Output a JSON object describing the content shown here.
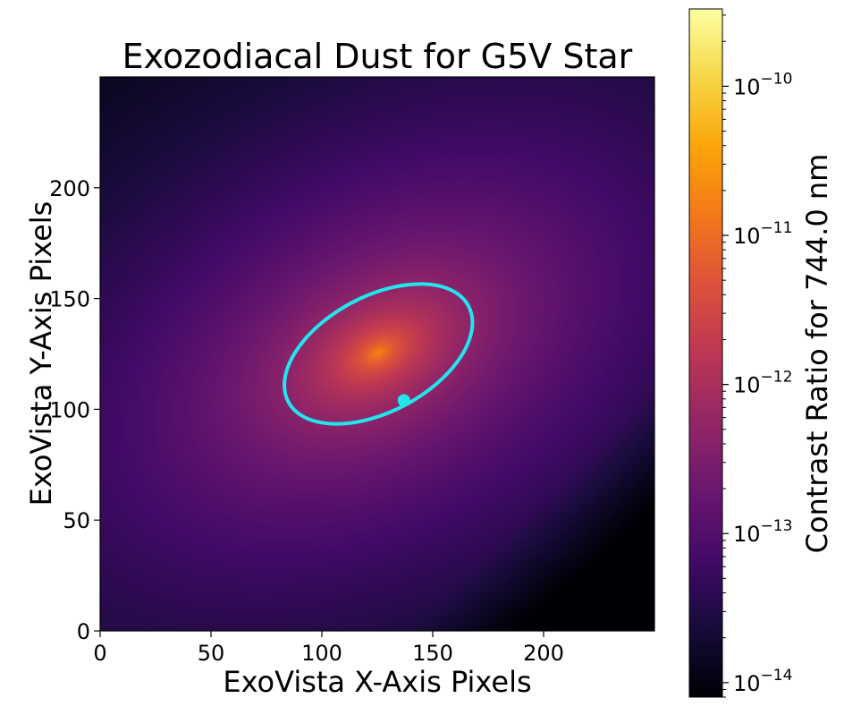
{
  "chart_data": {
    "type": "heatmap",
    "title": "Exozodiacal Dust for G5V Star",
    "xlabel": "ExoVista X-Axis Pixels",
    "ylabel": "ExoVista Y-Axis Pixels",
    "xlim": [
      0,
      250
    ],
    "ylim": [
      0,
      250
    ],
    "xticks": [
      0,
      50,
      100,
      150,
      200
    ],
    "yticks": [
      0,
      50,
      100,
      150,
      200
    ],
    "grid": false,
    "colormap": "inferno",
    "colorbar": {
      "label": "Contrast Ratio for 744.0 nm",
      "scale": "log",
      "range": [
        8e-15,
        3.3e-10
      ],
      "ticks": [
        {
          "value": 1e-10,
          "base": "10",
          "exp": "−10"
        },
        {
          "value": 1e-11,
          "base": "10",
          "exp": "−11"
        },
        {
          "value": 1e-12,
          "base": "10",
          "exp": "−12"
        },
        {
          "value": 1e-13,
          "base": "10",
          "exp": "−13"
        },
        {
          "value": 1e-14,
          "base": "10",
          "exp": "−14"
        }
      ]
    },
    "star_center": {
      "x": 125,
      "y": 125
    },
    "orbit": {
      "color": "#22e5ee",
      "center": {
        "x": 125.5,
        "y": 125
      },
      "semi_major": 46,
      "semi_minor": 26,
      "angle_deg": 28
    },
    "planet": {
      "x": 137,
      "y": 104,
      "color": "#22e5ee"
    }
  }
}
